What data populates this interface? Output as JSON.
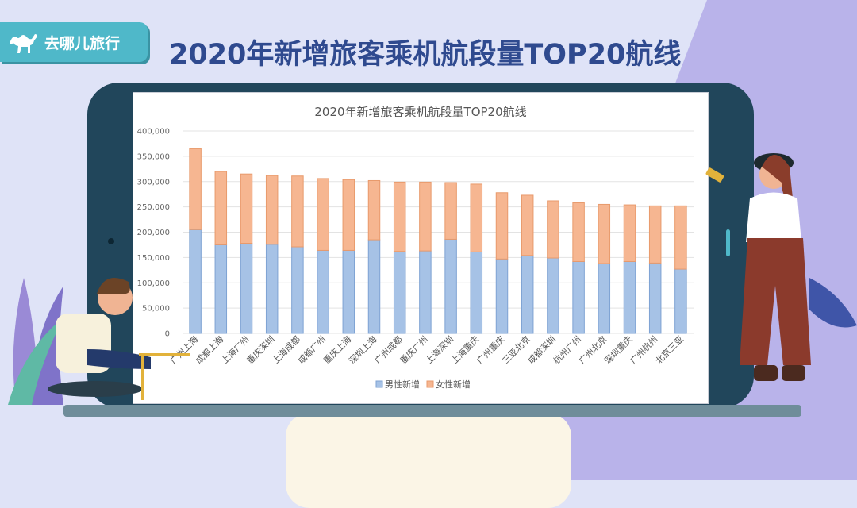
{
  "header": {
    "logo_text": "去哪儿旅行",
    "page_title": "2020年新增旅客乘机航段量TOP20航线"
  },
  "colors": {
    "series_male": "#a6c2e6",
    "series_female": "#f6b691",
    "title": "#2f4a8f",
    "logo_bg": "#4fb8c9"
  },
  "chart_data": {
    "type": "bar",
    "stacked": true,
    "title": "2020年新增旅客乘机航段量TOP20航线",
    "ylim": [
      0,
      400000
    ],
    "yticks": [
      "0",
      "50,000",
      "100,000",
      "150,000",
      "200,000",
      "250,000",
      "300,000",
      "350,000",
      "400,000"
    ],
    "grid": true,
    "legend_position": "bottom",
    "categories": [
      "广州上海",
      "成都上海",
      "上海广州",
      "重庆深圳",
      "上海成都",
      "成都广州",
      "重庆上海",
      "深圳上海",
      "广州成都",
      "重庆广州",
      "上海深圳",
      "上海重庆",
      "广州重庆",
      "三亚北京",
      "成都深圳",
      "杭州广州",
      "广州北京",
      "深圳重庆",
      "广州杭州",
      "北京三亚"
    ],
    "series": [
      {
        "name": "男性新增",
        "values": [
          205000,
          175000,
          178000,
          176000,
          171000,
          164000,
          164000,
          185000,
          162000,
          163000,
          186000,
          161000,
          147000,
          154000,
          149000,
          142000,
          138000,
          142000,
          139000,
          127000
        ]
      },
      {
        "name": "女性新增",
        "values": [
          160000,
          145000,
          137000,
          136000,
          140000,
          142000,
          140000,
          117000,
          137000,
          136000,
          112000,
          134000,
          131000,
          119000,
          113000,
          116000,
          117000,
          112000,
          113000,
          125000
        ]
      }
    ]
  }
}
